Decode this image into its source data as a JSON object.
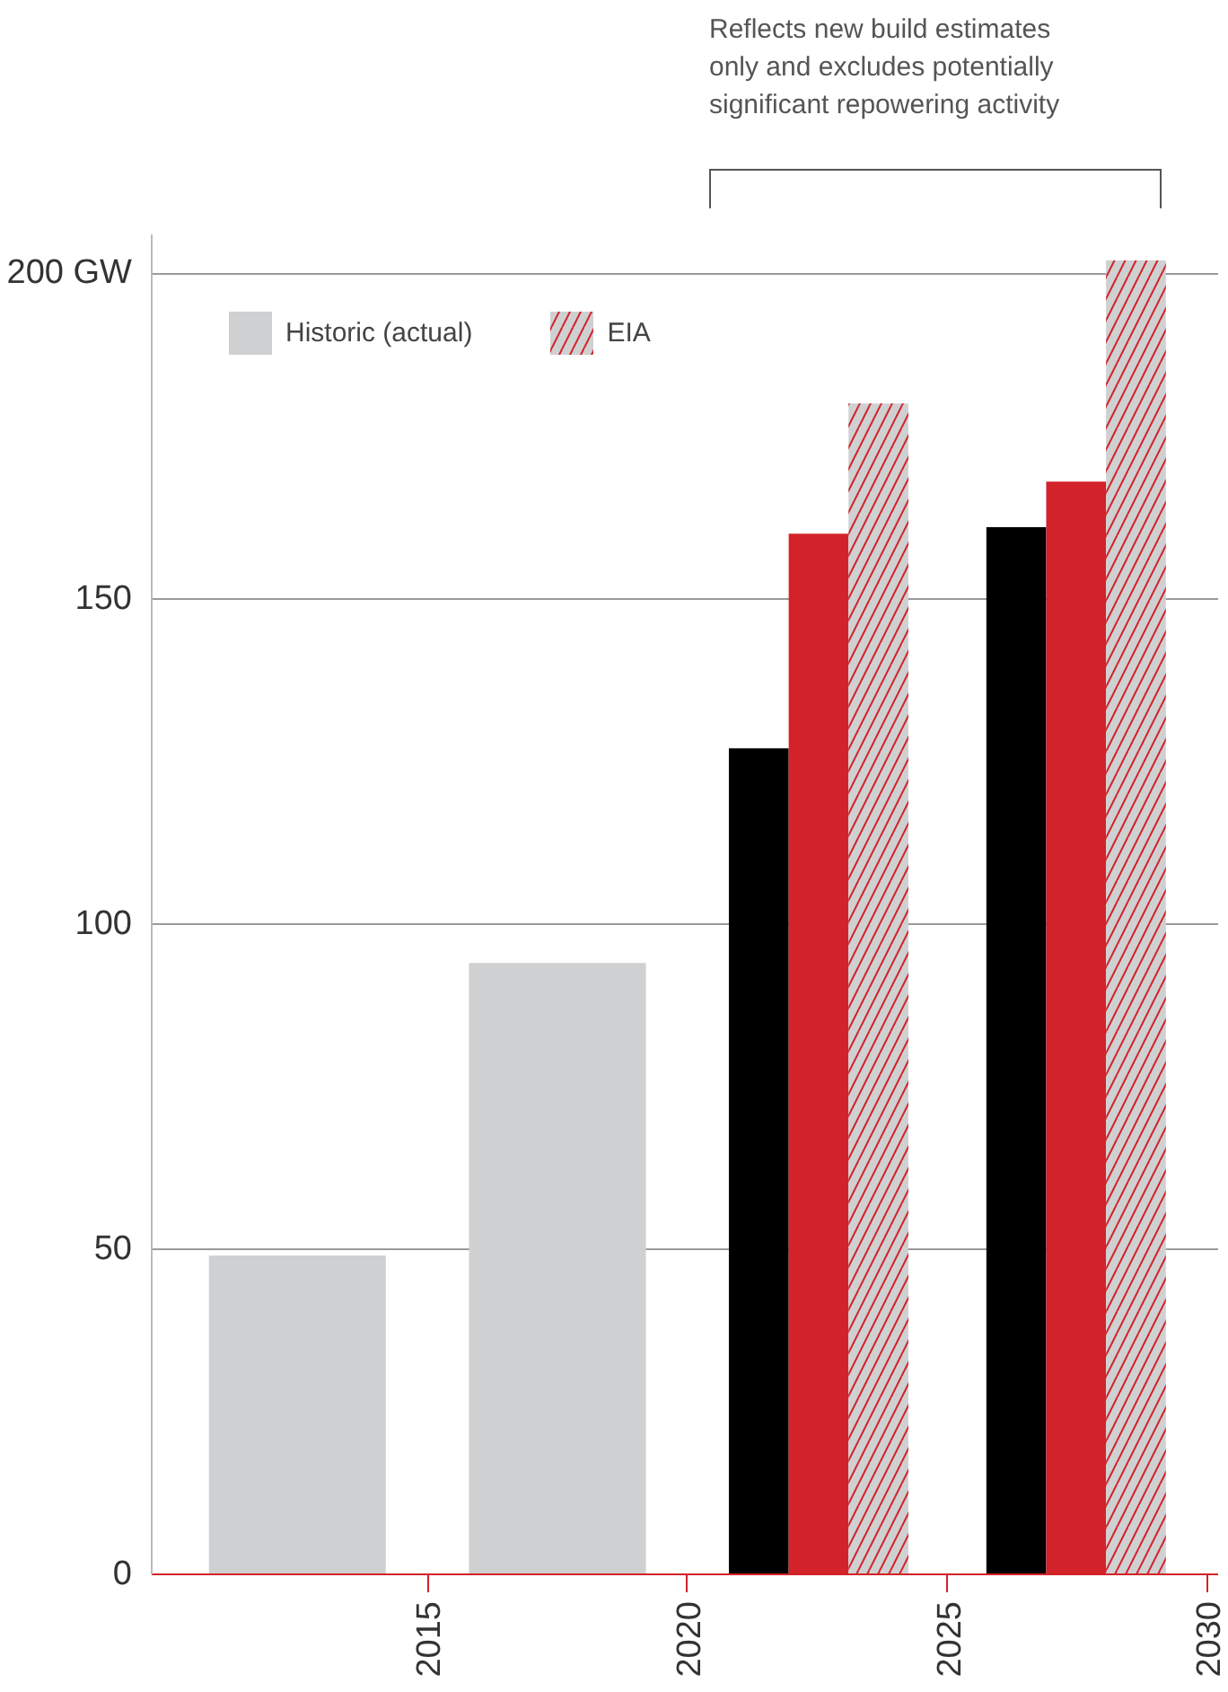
{
  "chart_data": {
    "type": "bar",
    "series": [
      {
        "name": "Historic (actual)",
        "color": "#cfd0d2",
        "x": [
          2012.5,
          2017.5
        ],
        "values": [
          49,
          94
        ]
      },
      {
        "color": "#000000",
        "x": [
          2021.37,
          2026.32
        ],
        "values": [
          127,
          161
        ]
      },
      {
        "color": "#d2232a",
        "x": [
          2022.52,
          2027.47
        ],
        "values": [
          160,
          168
        ]
      },
      {
        "name": "EIA",
        "color": "#cfd0d2",
        "x": [
          2023.67,
          2028.62
        ],
        "values": [
          180,
          202
        ]
      }
    ],
    "xlim": [
      2009.7,
      2030.2
    ],
    "xticks": [
      2015,
      2020,
      2025,
      2030
    ],
    "ylim": [
      0,
      206
    ],
    "yticks": [
      0,
      50,
      100,
      150,
      {
        "value": 200,
        "label": "200 GW"
      }
    ],
    "grid": "y",
    "legend": "top left",
    "annotations": [
      "Reflects new build estimates\nonly and excludes potentially\nsignificant repowering activity"
    ]
  }
}
